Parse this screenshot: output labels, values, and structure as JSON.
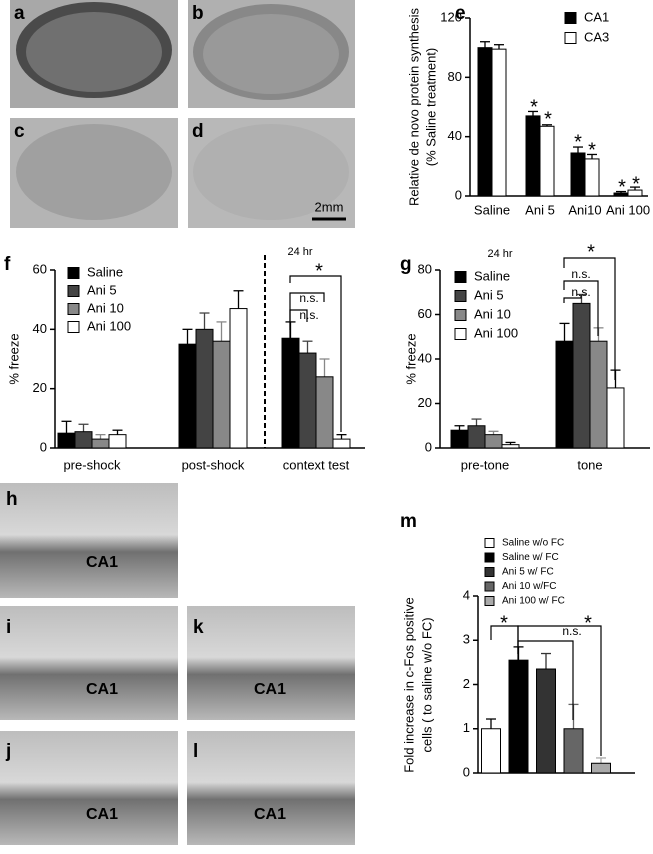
{
  "image_panels": [
    {
      "label": "a"
    },
    {
      "label": "b"
    },
    {
      "label": "c"
    },
    {
      "label": "d",
      "scale_bar": "2mm"
    },
    {
      "label": "h",
      "region": "CA1"
    },
    {
      "label": "i",
      "region": "CA1"
    },
    {
      "label": "k",
      "region": "CA1"
    },
    {
      "label": "j",
      "region": "CA1"
    },
    {
      "label": "l",
      "region": "CA1"
    }
  ],
  "chart_data": [
    {
      "type": "bar",
      "panel": "e",
      "ylabel": [
        "Relative de novo protein synthesis",
        "(% Saline treatment)"
      ],
      "categories": [
        "Saline",
        "Ani 5",
        "Ani10",
        "Ani 100"
      ],
      "series": [
        {
          "name": "CA1",
          "color": "#000000",
          "values": [
            100,
            54,
            29,
            2
          ],
          "errors": [
            4,
            3,
            4,
            1
          ]
        },
        {
          "name": "CA3",
          "color": "#ffffff",
          "values": [
            99,
            47,
            25,
            4
          ],
          "errors": [
            3,
            1,
            3,
            2
          ]
        }
      ],
      "ylim": [
        0,
        120
      ],
      "yticks": [
        0,
        40,
        80,
        120
      ],
      "annotations": [
        "*",
        "*",
        "*",
        "*",
        "*",
        "*"
      ]
    },
    {
      "type": "bar",
      "panel": "f",
      "ylabel": "% freeze",
      "categories": [
        "pre-shock",
        "post-shock",
        "context test"
      ],
      "series": [
        {
          "name": "Saline",
          "color": "#000000",
          "values": [
            5,
            35,
            37
          ],
          "errors": [
            4,
            5,
            5.5
          ]
        },
        {
          "name": "Ani 5",
          "color": "#444444",
          "values": [
            5.5,
            40,
            32
          ],
          "errors": [
            2.5,
            5.5,
            4
          ]
        },
        {
          "name": "Ani 10",
          "color": "#888888",
          "values": [
            3,
            36,
            24
          ],
          "errors": [
            1.5,
            6.5,
            6
          ]
        },
        {
          "name": "Ani 100",
          "color": "#ffffff",
          "values": [
            4.5,
            47,
            3
          ],
          "errors": [
            1.5,
            6,
            1.5
          ]
        }
      ],
      "ylim": [
        0,
        60
      ],
      "yticks": [
        0,
        20,
        40,
        60
      ],
      "annotations": [
        "24 hr",
        "n.s.",
        "n.s.",
        "*"
      ]
    },
    {
      "type": "bar",
      "panel": "g",
      "ylabel": "% freeze",
      "categories": [
        "pre-tone",
        "tone"
      ],
      "series": [
        {
          "name": "Saline",
          "color": "#000000",
          "values": [
            8,
            48
          ],
          "errors": [
            2,
            8
          ]
        },
        {
          "name": "Ani 5",
          "color": "#444444",
          "values": [
            10,
            65
          ],
          "errors": [
            3,
            4
          ]
        },
        {
          "name": "Ani 10",
          "color": "#888888",
          "values": [
            6,
            48
          ],
          "errors": [
            1.5,
            6
          ]
        },
        {
          "name": "Ani 100",
          "color": "#ffffff",
          "values": [
            1.5,
            27
          ],
          "errors": [
            1,
            8
          ]
        }
      ],
      "ylim": [
        0,
        80
      ],
      "yticks": [
        0,
        20,
        40,
        60,
        80
      ],
      "annotations": [
        "24 hr",
        "n.s.",
        "n.s.",
        "*"
      ]
    },
    {
      "type": "bar",
      "panel": "m",
      "ylabel": [
        "Fold increase in c-Fos positive",
        "cells ( to saline w/o FC)"
      ],
      "categories": [
        null
      ],
      "series": [
        {
          "name": "Saline w/o FC",
          "color": "#ffffff",
          "values": [
            1.0
          ],
          "errors": [
            0.22
          ]
        },
        {
          "name": "Saline w/ FC",
          "color": "#000000",
          "values": [
            2.55
          ],
          "errors": [
            0.3
          ]
        },
        {
          "name": "Ani 5  w/ FC",
          "color": "#333333",
          "values": [
            2.35
          ],
          "errors": [
            0.35
          ]
        },
        {
          "name": "Ani 10  w/FC",
          "color": "#666666",
          "values": [
            1.0
          ],
          "errors": [
            0.55
          ]
        },
        {
          "name": "Ani 100  w/ FC",
          "color": "#aaaaaa",
          "values": [
            0.22
          ],
          "errors": [
            0.12
          ]
        }
      ],
      "ylim": [
        0,
        4
      ],
      "yticks": [
        0,
        1,
        2,
        3,
        4
      ],
      "annotations": [
        "*",
        "n.s.",
        "*"
      ]
    }
  ]
}
